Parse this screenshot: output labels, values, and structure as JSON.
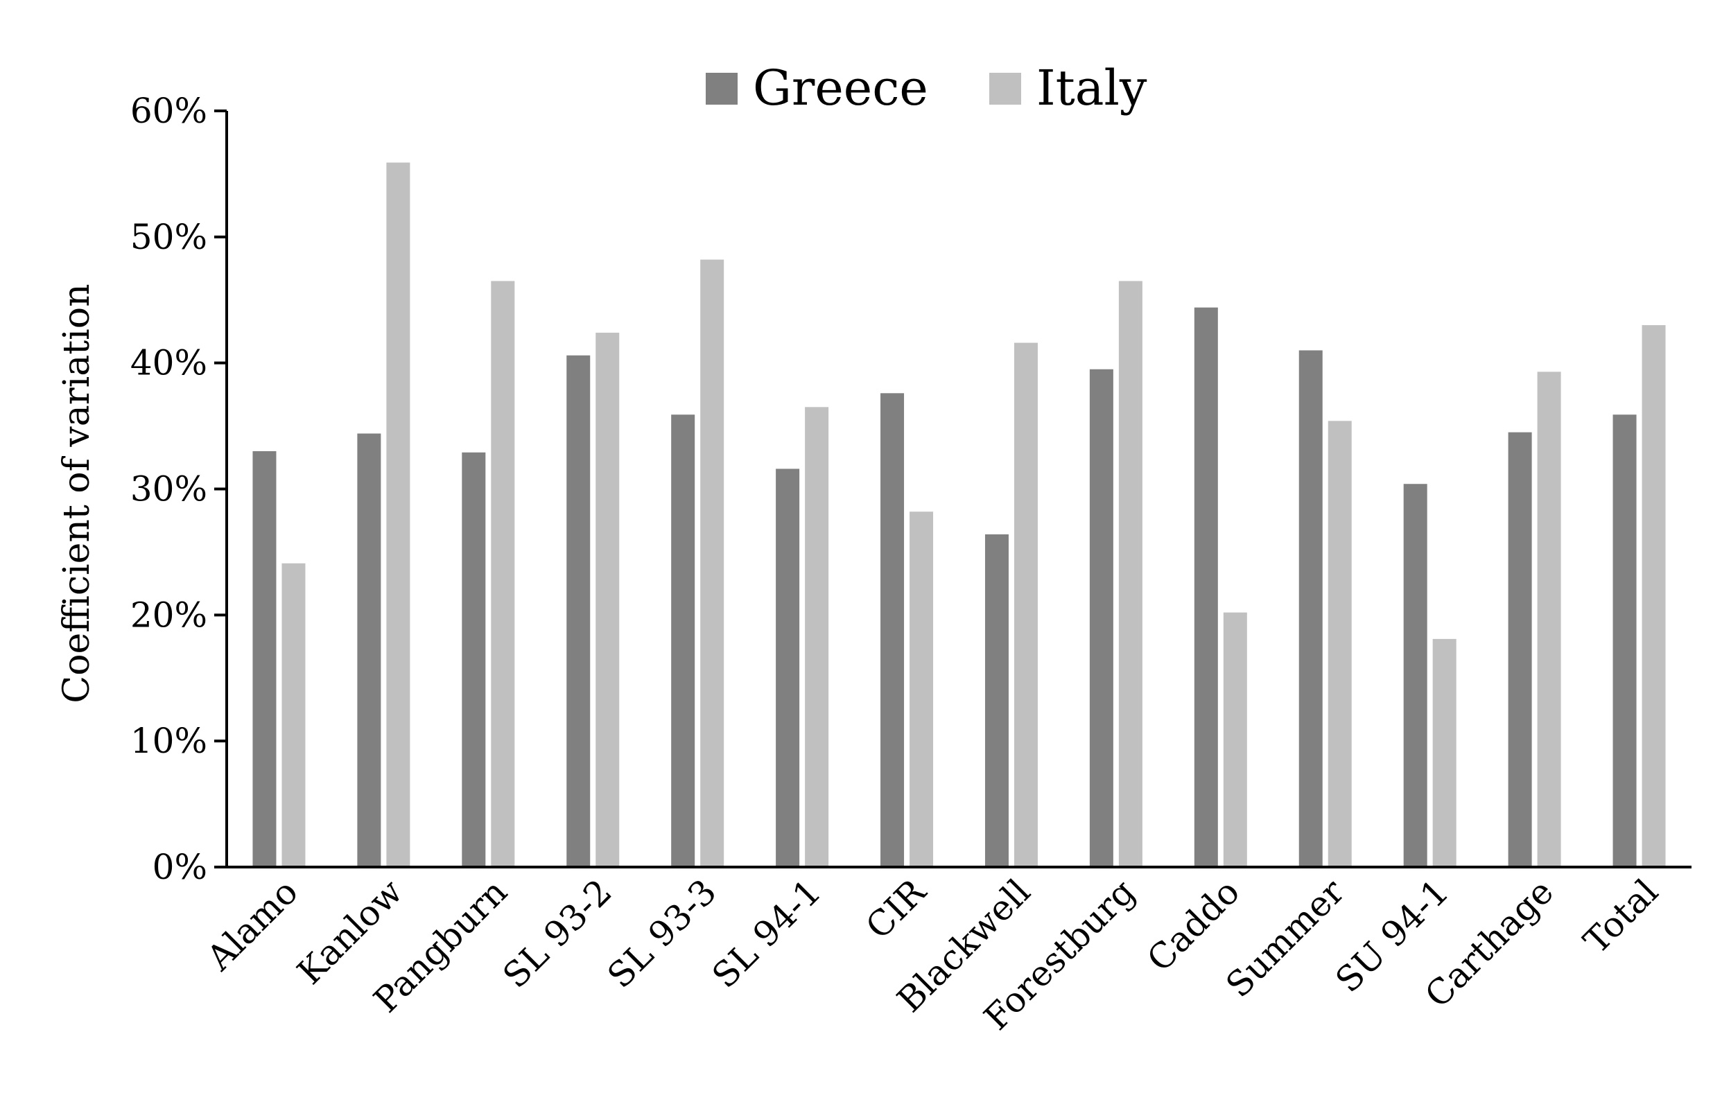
{
  "chart_data": {
    "type": "bar",
    "title": "",
    "xlabel": "",
    "ylabel": "Coefficient of variation",
    "ylim": [
      0,
      60
    ],
    "yticks": [
      "0%",
      "10%",
      "20%",
      "30%",
      "40%",
      "50%",
      "60%"
    ],
    "grid": false,
    "legend_position": "top-center",
    "categories": [
      "Alamo",
      "Kanlow",
      "Pangburn",
      "SL 93-2",
      "SL 93-3",
      "SL 94-1",
      "CIR",
      "Blackwell",
      "Forestburg",
      "Caddo",
      "Summer",
      "SU 94-1",
      "Carthage",
      "Total"
    ],
    "series": [
      {
        "name": "Greece",
        "color": "#808080",
        "values": [
          33.0,
          34.4,
          32.9,
          40.6,
          35.9,
          31.6,
          37.6,
          26.4,
          39.5,
          44.4,
          41.0,
          30.4,
          34.5,
          35.9
        ]
      },
      {
        "name": "Italy",
        "color": "#c0c0c0",
        "values": [
          24.1,
          55.9,
          46.5,
          42.4,
          48.2,
          36.5,
          28.2,
          41.6,
          46.5,
          20.2,
          35.4,
          18.1,
          39.3,
          43.0
        ]
      }
    ]
  }
}
